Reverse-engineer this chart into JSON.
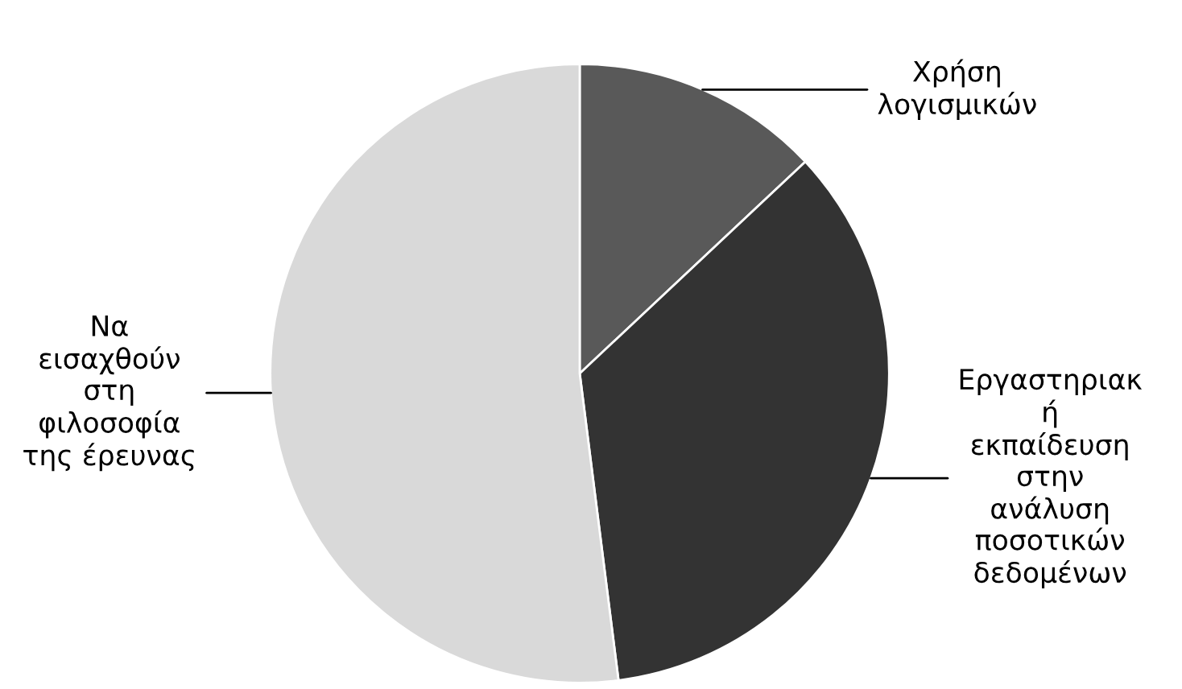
{
  "chart_data": {
    "type": "pie",
    "categories": [
      "Χρήση\nλογισμικών",
      "Εργαστηριακ\nή\nεκπαίδευση\nστην\nανάλυση\nποσοτικών\nδεδομένων",
      "Να\nεισαχθούν\nστη\nφιλοσοφία\nτης έρευνας"
    ],
    "values": [
      13,
      35,
      52
    ],
    "colors": [
      "#595959",
      "#333333",
      "#d9d9d9"
    ]
  }
}
